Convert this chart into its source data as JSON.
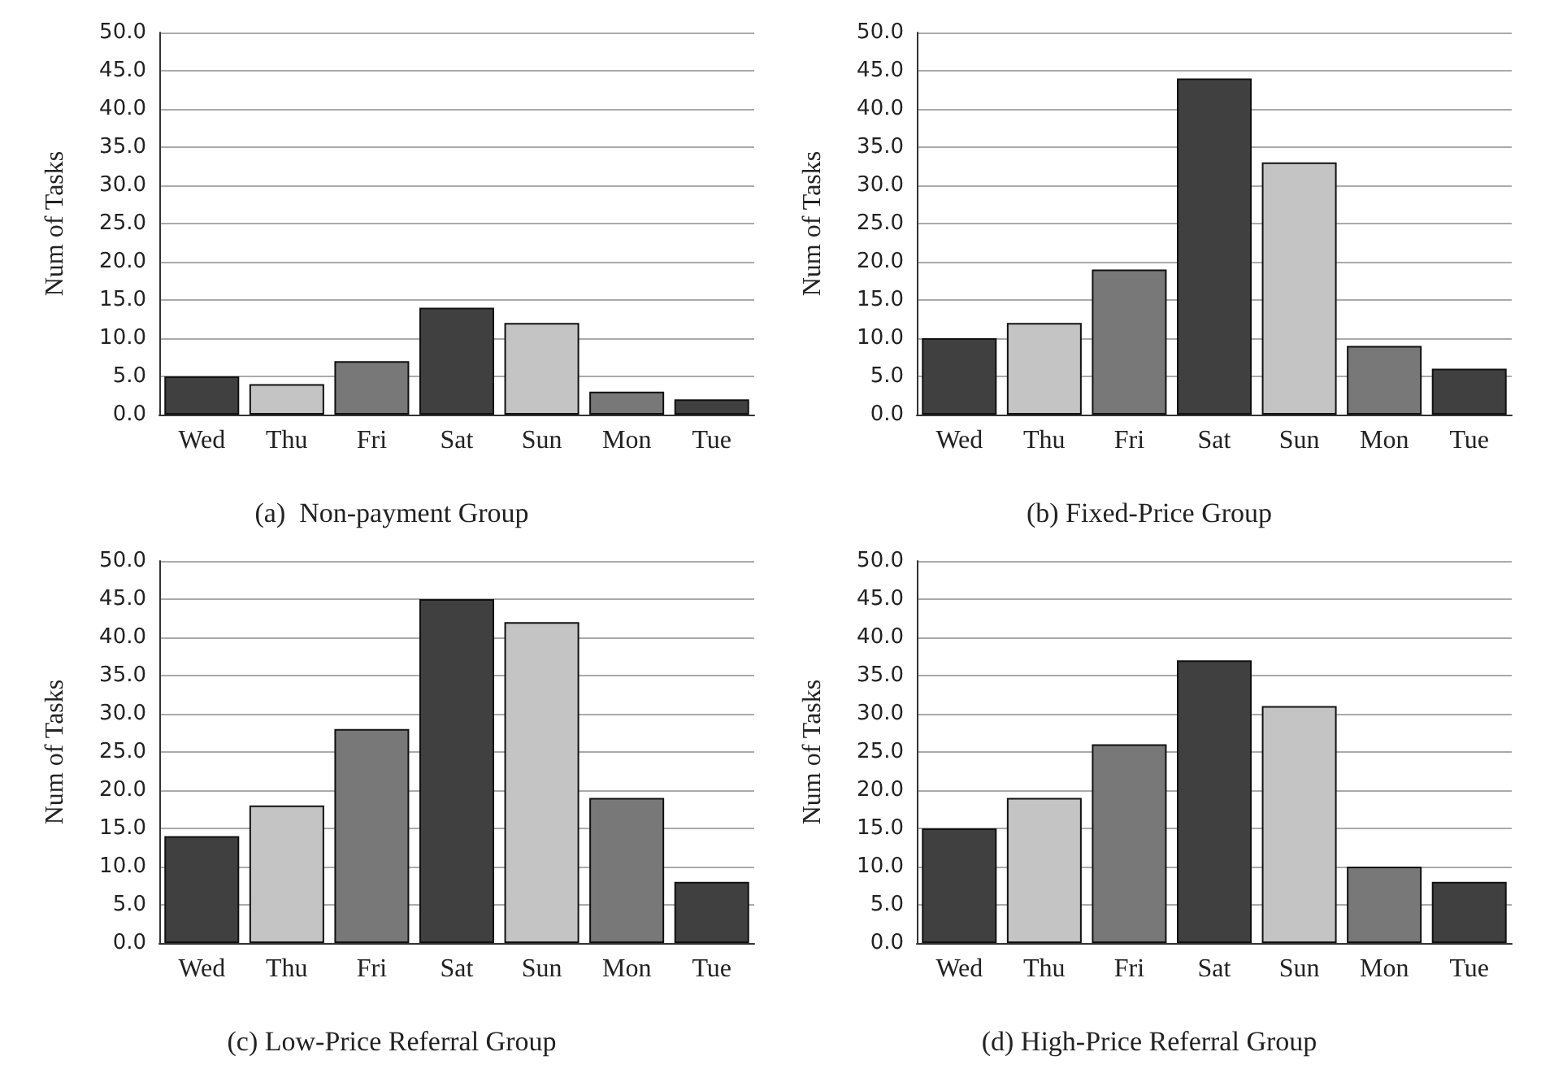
{
  "chart_data": [
    {
      "type": "bar",
      "title": "(a)  Non-payment Group",
      "ylabel": "Num of Tasks",
      "categories": [
        "Wed",
        "Thu",
        "Fri",
        "Sat",
        "Sun",
        "Mon",
        "Tue"
      ],
      "values": [
        5,
        4,
        7,
        14,
        12,
        3,
        2
      ],
      "colors": [
        "#404040",
        "#c4c4c4",
        "#787878",
        "#404040",
        "#c4c4c4",
        "#787878",
        "#404040"
      ],
      "ylim": [
        0,
        50
      ],
      "yticks": [
        {
          "value": 0,
          "label": "0.0"
        },
        {
          "value": 5,
          "label": "5.0"
        },
        {
          "value": 10,
          "label": "10.0"
        },
        {
          "value": 15,
          "label": "15.0"
        },
        {
          "value": 20,
          "label": "20.0"
        },
        {
          "value": 25,
          "label": "25.0"
        },
        {
          "value": 30,
          "label": "30.0"
        },
        {
          "value": 35,
          "label": "35.0"
        },
        {
          "value": 40,
          "label": "40.0"
        },
        {
          "value": 45,
          "label": "45.0"
        },
        {
          "value": 50,
          "label": "50.0"
        }
      ],
      "grid": "y"
    },
    {
      "type": "bar",
      "title": "(b) Fixed-Price Group",
      "ylabel": "Num of Tasks",
      "categories": [
        "Wed",
        "Thu",
        "Fri",
        "Sat",
        "Sun",
        "Mon",
        "Tue"
      ],
      "values": [
        10,
        12,
        19,
        44,
        33,
        9,
        6
      ],
      "colors": [
        "#404040",
        "#c4c4c4",
        "#787878",
        "#404040",
        "#c4c4c4",
        "#787878",
        "#404040"
      ],
      "ylim": [
        0,
        50
      ],
      "yticks": [
        {
          "value": 0,
          "label": "0.0"
        },
        {
          "value": 5,
          "label": "5.0"
        },
        {
          "value": 10,
          "label": "10.0"
        },
        {
          "value": 15,
          "label": "15.0"
        },
        {
          "value": 20,
          "label": "20.0"
        },
        {
          "value": 25,
          "label": "25.0"
        },
        {
          "value": 30,
          "label": "30.0"
        },
        {
          "value": 35,
          "label": "35.0"
        },
        {
          "value": 40,
          "label": "40.0"
        },
        {
          "value": 45,
          "label": "45.0"
        },
        {
          "value": 50,
          "label": "50.0"
        }
      ],
      "grid": "y"
    },
    {
      "type": "bar",
      "title": "(c) Low-Price Referral Group",
      "ylabel": "Num of Tasks",
      "categories": [
        "Wed",
        "Thu",
        "Fri",
        "Sat",
        "Sun",
        "Mon",
        "Tue"
      ],
      "values": [
        14,
        18,
        28,
        45,
        42,
        19,
        8
      ],
      "colors": [
        "#404040",
        "#c4c4c4",
        "#787878",
        "#404040",
        "#c4c4c4",
        "#787878",
        "#404040"
      ],
      "ylim": [
        0,
        50
      ],
      "yticks": [
        {
          "value": 0,
          "label": "0.0"
        },
        {
          "value": 5,
          "label": "5.0"
        },
        {
          "value": 10,
          "label": "10.0"
        },
        {
          "value": 15,
          "label": "15.0"
        },
        {
          "value": 20,
          "label": "20.0"
        },
        {
          "value": 25,
          "label": "25.0"
        },
        {
          "value": 30,
          "label": "30.0"
        },
        {
          "value": 35,
          "label": "35.0"
        },
        {
          "value": 40,
          "label": "40.0"
        },
        {
          "value": 45,
          "label": "45.0"
        },
        {
          "value": 50,
          "label": "50.0"
        }
      ],
      "grid": "y"
    },
    {
      "type": "bar",
      "title": "(d) High-Price Referral Group",
      "ylabel": "Num of Tasks",
      "categories": [
        "Wed",
        "Thu",
        "Fri",
        "Sat",
        "Sun",
        "Mon",
        "Tue"
      ],
      "values": [
        15,
        19,
        26,
        37,
        31,
        10,
        8
      ],
      "colors": [
        "#404040",
        "#c4c4c4",
        "#787878",
        "#404040",
        "#c4c4c4",
        "#787878",
        "#404040"
      ],
      "ylim": [
        0,
        50
      ],
      "yticks": [
        {
          "value": 0,
          "label": "0.0"
        },
        {
          "value": 5,
          "label": "5.0"
        },
        {
          "value": 10,
          "label": "10.0"
        },
        {
          "value": 15,
          "label": "15.0"
        },
        {
          "value": 20,
          "label": "20.0"
        },
        {
          "value": 25,
          "label": "25.0"
        },
        {
          "value": 30,
          "label": "30.0"
        },
        {
          "value": 35,
          "label": "35.0"
        },
        {
          "value": 40,
          "label": "40.0"
        },
        {
          "value": 45,
          "label": "45.0"
        },
        {
          "value": 50,
          "label": "50.0"
        }
      ],
      "grid": "y"
    }
  ]
}
